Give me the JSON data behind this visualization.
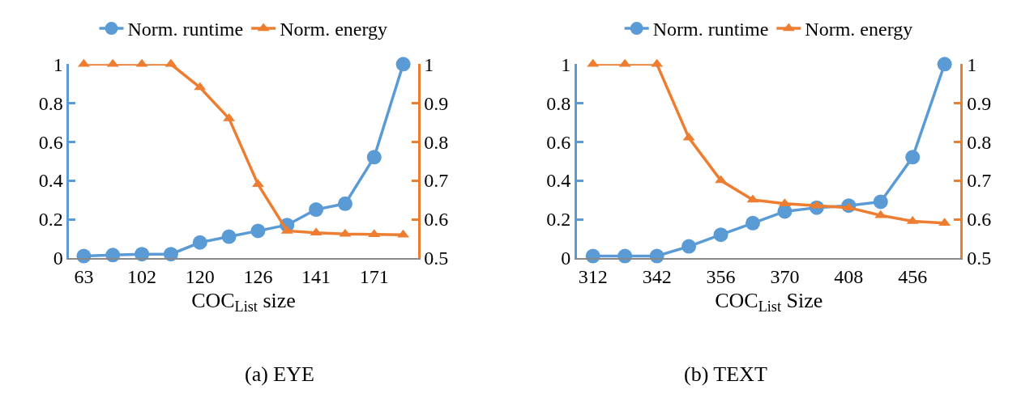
{
  "chart_data": [
    {
      "type": "line",
      "title": "(a) EYE",
      "xlabel": "COC$_{List}$ size",
      "categories": [
        "63",
        null,
        "102",
        null,
        "120",
        null,
        "126",
        null,
        "141",
        null,
        "171",
        null
      ],
      "ylim": [
        0,
        1
      ],
      "yticks": [
        0,
        0.2,
        0.4,
        0.6,
        0.8,
        1
      ],
      "y2lim": [
        0.5,
        1
      ],
      "y2ticks": [
        0.5,
        0.6,
        0.7,
        0.8,
        0.9,
        1
      ],
      "legend": "top",
      "line_style": "solid",
      "series": [
        {
          "name": "Norm. runtime",
          "color": "#5b9bd5",
          "marker": "circle",
          "values": [
            0.01,
            0.015,
            0.02,
            0.02,
            0.08,
            0.11,
            0.14,
            0.17,
            0.25,
            0.28,
            0.52,
            1.0
          ]
        },
        {
          "name": "Norm. energy",
          "color": "#ed7d31",
          "marker": "triangle",
          "axis": "y2",
          "values": [
            1,
            1,
            1,
            1,
            0.94,
            0.86,
            0.69,
            0.57,
            0.565,
            0.562,
            0.561,
            0.56
          ]
        }
      ]
    },
    {
      "type": "line",
      "title": "(b) TEXT",
      "xlabel": "COC$_{List}$ Size",
      "categories": [
        "312",
        null,
        "342",
        null,
        "356",
        null,
        "370",
        null,
        "408",
        null,
        "456",
        null
      ],
      "ylim": [
        0,
        1
      ],
      "yticks": [
        0,
        0.2,
        0.4,
        0.6,
        0.8,
        1
      ],
      "y2lim": [
        0.5,
        1
      ],
      "y2ticks": [
        0.5,
        0.6,
        0.7,
        0.8,
        0.9,
        1
      ],
      "legend": "top",
      "line_style": "solid",
      "series": [
        {
          "name": "Norm. runtime",
          "color": "#5b9bd5",
          "marker": "circle",
          "values": [
            0.01,
            0.01,
            0.01,
            0.06,
            0.12,
            0.18,
            0.24,
            0.26,
            0.27,
            0.29,
            0.52,
            1.0
          ]
        },
        {
          "name": "Norm. energy",
          "color": "#ed7d31",
          "marker": "triangle",
          "axis": "y2",
          "values": [
            1,
            1,
            1,
            0.81,
            0.7,
            0.65,
            0.64,
            0.635,
            0.63,
            0.61,
            0.595,
            0.59
          ]
        }
      ]
    }
  ]
}
